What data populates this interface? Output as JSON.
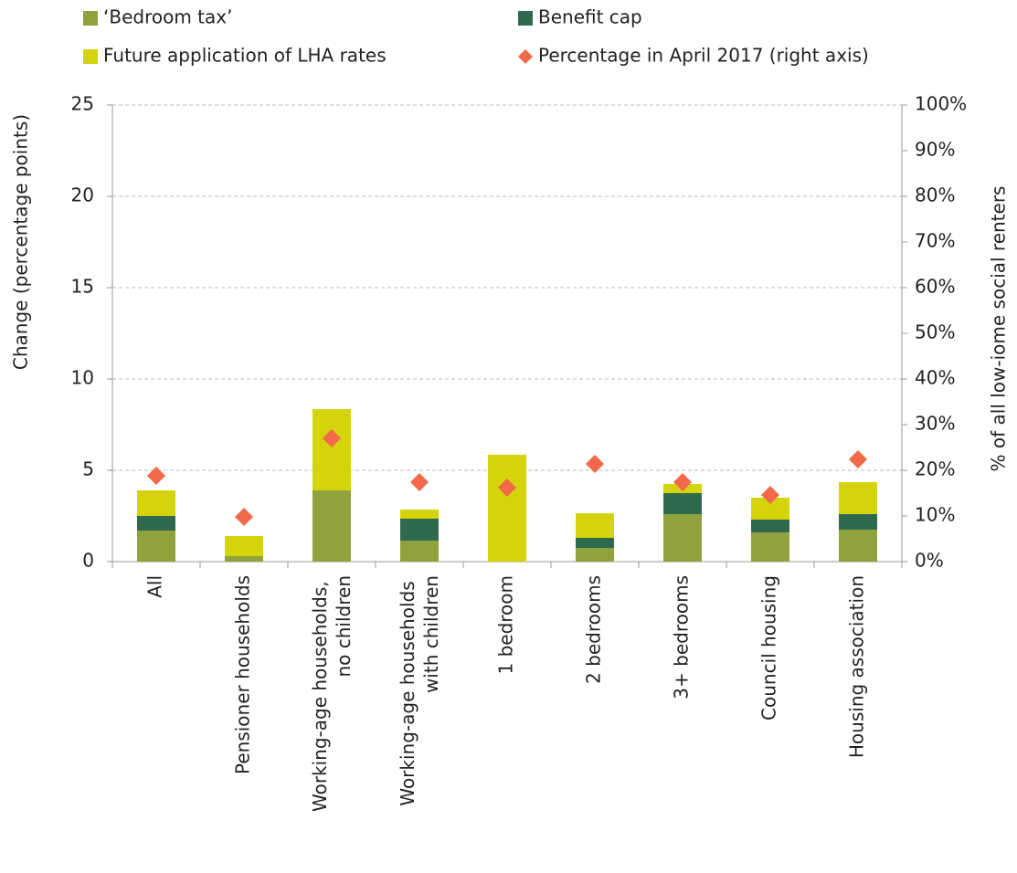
{
  "chart_data": {
    "type": "bar",
    "stacked": true,
    "categories": [
      "All",
      "Pensioner households",
      "Working-age households, no children",
      "Working-age households with children",
      "1 bedroom",
      "2 bedrooms",
      "3+ bedrooms",
      "Council housing",
      "Housing association"
    ],
    "series": [
      {
        "name": "‘Bedroom tax’",
        "color": "#8fa23d",
        "values": [
          1.7,
          0.3,
          3.9,
          1.15,
          0,
          0.75,
          2.6,
          1.6,
          1.75
        ]
      },
      {
        "name": "Benefit cap",
        "color": "#2f6a4f",
        "values": [
          0.8,
          0,
          0,
          1.2,
          0,
          0.55,
          1.15,
          0.7,
          0.85
        ]
      },
      {
        "name": "Future application of LHA rates",
        "color": "#d5d40c",
        "values": [
          1.4,
          1.1,
          4.45,
          0.5,
          5.85,
          1.35,
          0.5,
          1.2,
          1.75
        ]
      },
      {
        "name": "Percentage in April 2017 (right axis)",
        "color": "#f2694a",
        "type": "scatter",
        "axis": "y2",
        "values": [
          18.8,
          9.8,
          27,
          17.4,
          16.2,
          21.4,
          17.4,
          14.6,
          22.4
        ]
      }
    ],
    "ylabel": "Change (percentage points)",
    "y2label": "% of all low-iome social renters",
    "ylim": [
      0,
      25
    ],
    "yticks": [
      0,
      5,
      10,
      15,
      20,
      25
    ],
    "y2lim": [
      0,
      100
    ],
    "y2ticks": [
      {
        "value": 0,
        "label": "0%"
      },
      {
        "value": 10,
        "label": "10%"
      },
      {
        "value": 20,
        "label": "20%"
      },
      {
        "value": 30,
        "label": "30%"
      },
      {
        "value": 40,
        "label": "40%"
      },
      {
        "value": 50,
        "label": "50%"
      },
      {
        "value": 60,
        "label": "60%"
      },
      {
        "value": 70,
        "label": "70%"
      },
      {
        "value": 80,
        "label": "80%"
      },
      {
        "value": 90,
        "label": "90%"
      },
      {
        "value": 100,
        "label": "100%"
      }
    ],
    "grid": true,
    "legend": "top"
  }
}
